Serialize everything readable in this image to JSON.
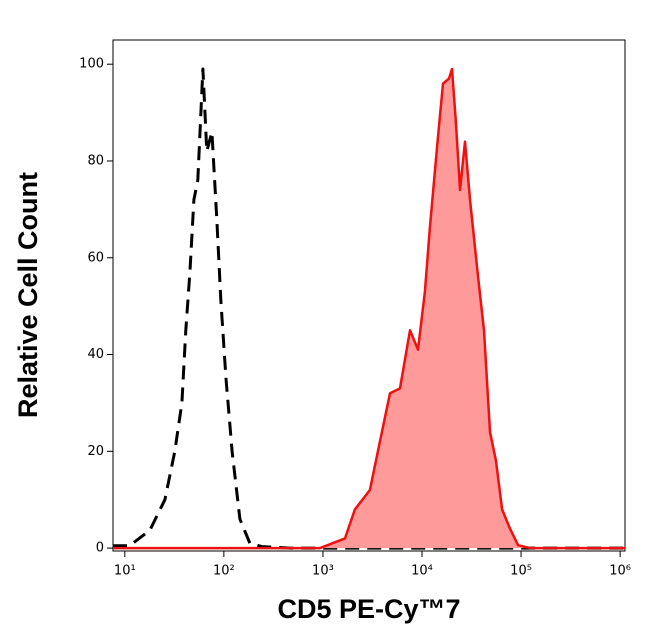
{
  "chart_data": {
    "type": "histogram-overlay",
    "xlabel": "CD5 PE-Cy™7",
    "ylabel": "Relative Cell Count",
    "xscale": "log",
    "xlim": [
      7.6,
      1120000
    ],
    "ylim": [
      -0.6,
      105
    ],
    "xticks": [
      {
        "value": 10,
        "label": "10¹"
      },
      {
        "value": 100,
        "label": "10²"
      },
      {
        "value": 1000,
        "label": "10³"
      },
      {
        "value": 10000,
        "label": "10⁴"
      },
      {
        "value": 100000,
        "label": "10⁵"
      },
      {
        "value": 1000000,
        "label": "10⁶"
      }
    ],
    "yticks": [
      0,
      20,
      40,
      60,
      80,
      100
    ],
    "series": [
      {
        "color": "#000000",
        "style": "dashed",
        "filled": false,
        "x": [
          7.6,
          11.2,
          17.9,
          25.4,
          32,
          37.7,
          41.3,
          45.4,
          49.8,
          54.6,
          61.4,
          67.3,
          75.7,
          84.9,
          93.3,
          105,
          121,
          145,
          183,
          242,
          464,
          1120000
        ],
        "values": [
          0.5,
          0.5,
          3.7,
          10,
          20,
          30,
          45,
          57,
          72,
          76,
          99,
          82,
          86,
          68,
          51,
          35,
          20,
          6,
          1,
          0.3,
          0,
          0
        ]
      },
      {
        "color": "#ee1111",
        "fill": "#ff9a9a",
        "style": "solid",
        "filled": true,
        "x": [
          7.6,
          933,
          1670,
          2100,
          2980,
          3760,
          4750,
          6000,
          7570,
          9120,
          10700,
          12000,
          14200,
          16300,
          18700,
          20100,
          22000,
          24200,
          27200,
          30500,
          36800,
          42300,
          48600,
          55900,
          64300,
          77400,
          93300,
          123000,
          1120000
        ],
        "values": [
          0,
          0,
          2,
          8,
          12,
          22,
          32,
          33,
          45,
          41,
          53,
          66,
          83,
          96,
          97,
          99,
          88,
          74,
          84,
          72,
          56,
          45,
          24,
          18,
          8,
          4,
          0.6,
          0,
          0
        ]
      }
    ]
  }
}
